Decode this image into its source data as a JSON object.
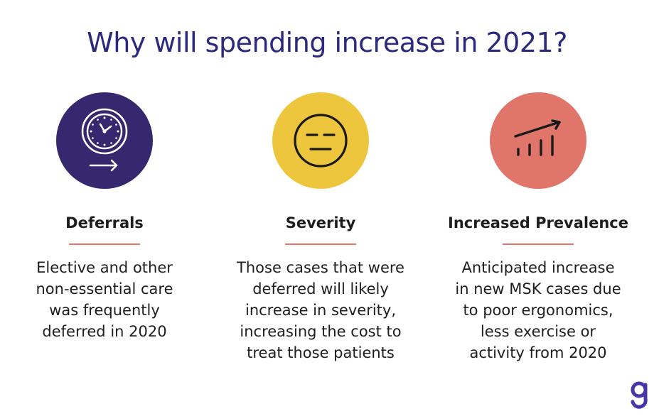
{
  "title": "Why will spending increase in 2021?",
  "colors": {
    "title": "#2c2a7c",
    "deferrals_circle": "#35286f",
    "severity_circle": "#eec63d",
    "prevalence_circle": "#e0766a",
    "underline": "#e0766a",
    "logo": "#4a35a8"
  },
  "columns": [
    {
      "icon": "clock-arrow-icon",
      "heading": "Deferrals",
      "lines": [
        "Elective and other",
        "non-essential care",
        "was frequently",
        "deferred in 2020"
      ]
    },
    {
      "icon": "neutral-face-icon",
      "heading": "Severity",
      "lines": [
        "Those cases that were",
        "deferred will likely",
        "increase in severity,",
        "increasing the cost to",
        "treat those patients"
      ]
    },
    {
      "icon": "trend-chart-icon",
      "heading": "Increased Prevalence",
      "lines": [
        "Anticipated increase",
        "in new MSK cases due",
        "to poor ergonomics,",
        "less exercise or",
        "activity from 2020"
      ]
    }
  ],
  "logo": {
    "icon": "g-logo-icon"
  }
}
